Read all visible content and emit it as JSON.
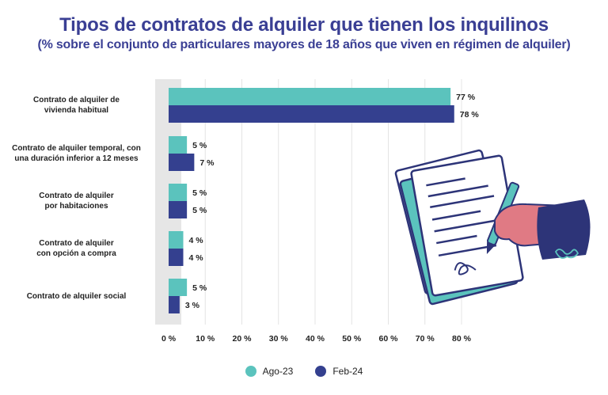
{
  "header": {
    "title": "Tipos de contratos de alquiler que tienen los inquilinos",
    "subtitle": "(% sobre el conjunto de particulares mayores de 18 años que viven en régimen de alquiler)"
  },
  "colors": {
    "ago23": "#5bc3bd",
    "feb24": "#34408f",
    "illustration_navy": "#2d3478",
    "illustration_teal": "#5bc3bd",
    "illustration_pink": "#e07a84"
  },
  "illustration": {
    "icon": "signing-contract-icon"
  },
  "chart_data": {
    "type": "bar",
    "orientation": "horizontal",
    "categories": [
      [
        "Contrato de alquiler de",
        "vivienda habitual"
      ],
      [
        "Contrato de alquiler temporal, con",
        "una duración inferior a 12 meses"
      ],
      [
        "Contrato de alquiler",
        "por habitaciones"
      ],
      [
        "Contrato de alquiler",
        "con opción a compra"
      ],
      [
        "Contrato de alquiler social"
      ]
    ],
    "series": [
      {
        "name": "Ago-23",
        "values": [
          77,
          5,
          5,
          4,
          5
        ]
      },
      {
        "name": "Feb-24",
        "values": [
          78,
          7,
          5,
          4,
          3
        ]
      }
    ],
    "value_labels": [
      [
        "77 %",
        "5 %",
        "5 %",
        "4 %",
        "5 %"
      ],
      [
        "78 %",
        "7 %",
        "5 %",
        "4 %",
        "3 %"
      ]
    ],
    "xlim": [
      0,
      80
    ],
    "xticks": [
      0,
      10,
      20,
      30,
      40,
      50,
      60,
      70,
      80
    ],
    "xtick_labels": [
      "0 %",
      "10 %",
      "20 %",
      "30 %",
      "40 %",
      "50 %",
      "60 %",
      "70 %",
      "80 %"
    ],
    "grid": true,
    "legend_position": "bottom-center"
  }
}
